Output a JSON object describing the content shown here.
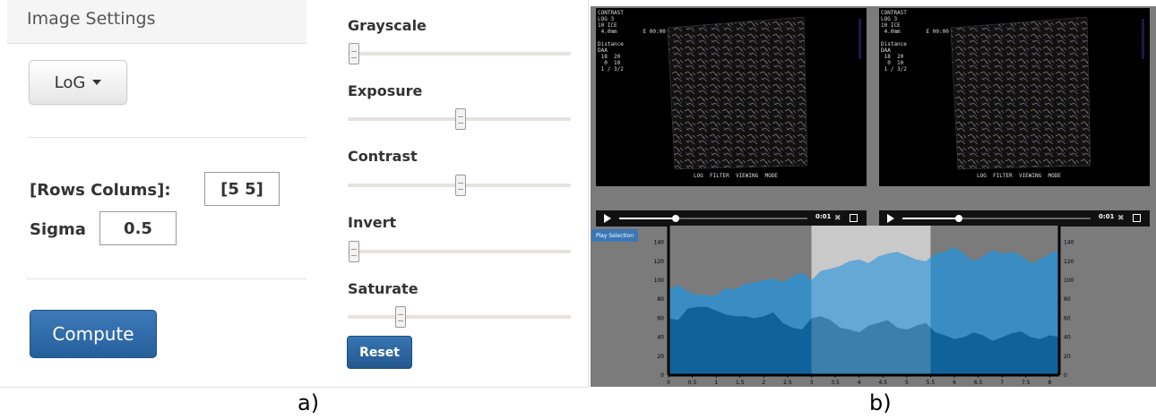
{
  "settings": {
    "title": "Image Settings",
    "filter_dropdown": "LoG",
    "rows_cols_label": "[Rows Colums]:",
    "rows_cols_value": "[5 5]",
    "sigma_label": "Sigma",
    "sigma_value": "0.5",
    "compute_label": "Compute"
  },
  "sliders": [
    {
      "label": "Grayscale",
      "value": 0.0
    },
    {
      "label": "Exposure",
      "value": 0.5
    },
    {
      "label": "Contrast",
      "value": 0.5
    },
    {
      "label": "Invert",
      "value": 0.0
    },
    {
      "label": "Saturate",
      "value": 0.22
    }
  ],
  "reset_label": "Reset",
  "captions": {
    "a": "a)",
    "b": "b)"
  },
  "video_player": {
    "time_left": "0:01",
    "time_right": "0:01",
    "play_selection_label": "Play Selection",
    "overlay_left": "CONTRAST\nLOG 3\n10 ICE\n 4.0mm        E 00:00\n\nDistance\nDAA\n 18  20\n  0  10\n 1 / 3/2",
    "overlay_right": "CONTRAST\nLOG 3\n10 ICE\n 4.0mm        E 00:00\n\nDistance\nDAA\n 18  20\n  0  10\n 1 / 3/2",
    "bottom_caption_left": "LOG  FILTER  VIEWING  MODE",
    "bottom_caption_right": "LOG  FILTER  VIEWING  MODE"
  },
  "chart_data": {
    "type": "area",
    "x": [
      0,
      0.2,
      0.4,
      0.6,
      0.8,
      1,
      1.2,
      1.4,
      1.6,
      1.8,
      2,
      2.2,
      2.4,
      2.6,
      2.8,
      3,
      3.2,
      3.4,
      3.6,
      3.8,
      4,
      4.2,
      4.4,
      4.6,
      4.8,
      5,
      5.2,
      5.4,
      5.6,
      5.8,
      6,
      6.2,
      6.4,
      6.6,
      6.8,
      7,
      7.2,
      7.4,
      7.6,
      7.8,
      8,
      8.2
    ],
    "series": [
      {
        "values": [
          90,
          95,
          88,
          85,
          84,
          84,
          92,
          90,
          96,
          98,
          100,
          102,
          98,
          104,
          108,
          100,
          110,
          112,
          115,
          120,
          122,
          118,
          125,
          128,
          130,
          126,
          122,
          120,
          128,
          130,
          135,
          128,
          120,
          125,
          132,
          128,
          130,
          126,
          118,
          122,
          128,
          132
        ]
      },
      {
        "values": [
          60,
          58,
          70,
          72,
          72,
          68,
          64,
          62,
          62,
          60,
          62,
          66,
          55,
          50,
          48,
          60,
          62,
          58,
          50,
          48,
          45,
          52,
          55,
          58,
          50,
          48,
          52,
          55,
          45,
          42,
          38,
          40,
          45,
          42,
          36,
          40,
          44,
          46,
          40,
          38,
          42,
          40
        ]
      }
    ],
    "selection": [
      3,
      5.5
    ],
    "xlim": [
      0,
      8.2
    ],
    "ylim": [
      0,
      150
    ],
    "xticks": [
      "0",
      "0.5",
      "1",
      "1.5",
      "2",
      "2.5",
      "3",
      "3.5",
      "4",
      "4.5",
      "5",
      "5.5",
      "6",
      "6.5",
      "7",
      "7.5",
      "8"
    ],
    "yticks": [
      "0",
      "20",
      "40",
      "60",
      "80",
      "100",
      "120",
      "140"
    ],
    "colors": {
      "upper": "#2e90d0",
      "lower": "#0b5d96",
      "selection": "#bdbdbd"
    }
  }
}
